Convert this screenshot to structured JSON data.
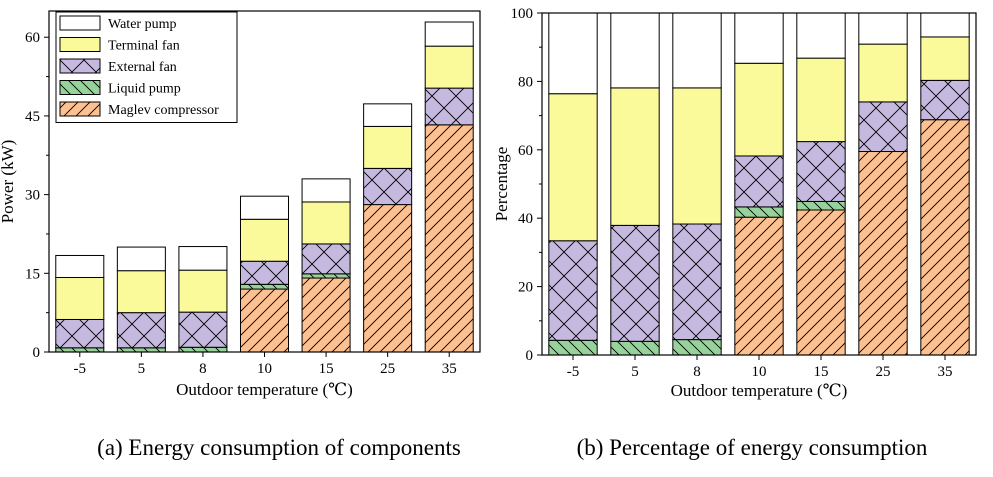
{
  "chart_data": [
    {
      "type": "bar",
      "stacked": true,
      "caption": "(a) Energy consumption of components",
      "xlabel": "Outdoor temperature (℃)",
      "ylabel": "Power (kW)",
      "categories": [
        "-5",
        "5",
        "8",
        "10",
        "15",
        "25",
        "35"
      ],
      "ylim": [
        0,
        65
      ],
      "yticks": [
        0,
        15,
        30,
        45,
        60
      ],
      "legend_position": "top-left",
      "series": [
        {
          "name": "Maglev compressor",
          "values": [
            0,
            0,
            0,
            12.0,
            14.1,
            28.1,
            43.3
          ]
        },
        {
          "name": "Liquid pump",
          "values": [
            0.8,
            0.8,
            0.9,
            0.9,
            0.8,
            0,
            0
          ]
        },
        {
          "name": "External fan",
          "values": [
            5.4,
            6.7,
            6.7,
            4.4,
            5.7,
            6.9,
            7.0
          ]
        },
        {
          "name": "Terminal fan",
          "values": [
            8.0,
            8.0,
            8.0,
            8.0,
            8.0,
            8.0,
            8.0
          ]
        },
        {
          "name": "Water pump",
          "values": [
            4.2,
            4.5,
            4.5,
            4.4,
            4.4,
            4.3,
            4.6
          ]
        }
      ]
    },
    {
      "type": "bar",
      "stacked": true,
      "caption": "(b) Percentage of energy consumption",
      "xlabel": "Outdoor temperature (℃)",
      "ylabel": "Percentage",
      "categories": [
        "-5",
        "5",
        "8",
        "10",
        "15",
        "25",
        "35"
      ],
      "ylim": [
        0,
        100
      ],
      "yticks": [
        0,
        20,
        40,
        60,
        80,
        100
      ],
      "series": [
        {
          "name": "Maglev compressor",
          "values": [
            0,
            0,
            0,
            40.3,
            42.4,
            59.5,
            68.8
          ]
        },
        {
          "name": "Liquid pump",
          "values": [
            4.3,
            4.0,
            4.5,
            3.0,
            2.5,
            0,
            0
          ]
        },
        {
          "name": "External fan",
          "values": [
            29.1,
            33.9,
            33.8,
            14.9,
            17.5,
            14.5,
            11.5
          ]
        },
        {
          "name": "Terminal fan",
          "values": [
            43.0,
            40.2,
            39.8,
            27.1,
            24.4,
            16.9,
            12.7
          ]
        },
        {
          "name": "Water pump",
          "values": [
            23.6,
            21.9,
            21.9,
            14.7,
            13.2,
            9.1,
            7.0
          ]
        }
      ]
    }
  ],
  "legend_order": [
    "Water pump",
    "Terminal fan",
    "External fan",
    "Liquid pump",
    "Maglev compressor"
  ],
  "colors": {
    "Water pump": "#ffffff",
    "Terminal fan": "#fafa9b",
    "External fan": "#c6b9df",
    "Liquid pump": "#96d39a",
    "Maglev compressor": "#fdc090"
  },
  "hatch": {
    "Water pump": "none",
    "Terminal fan": "none",
    "External fan": "cross",
    "Liquid pump": "back-diagonal",
    "Maglev compressor": "diagonal"
  }
}
